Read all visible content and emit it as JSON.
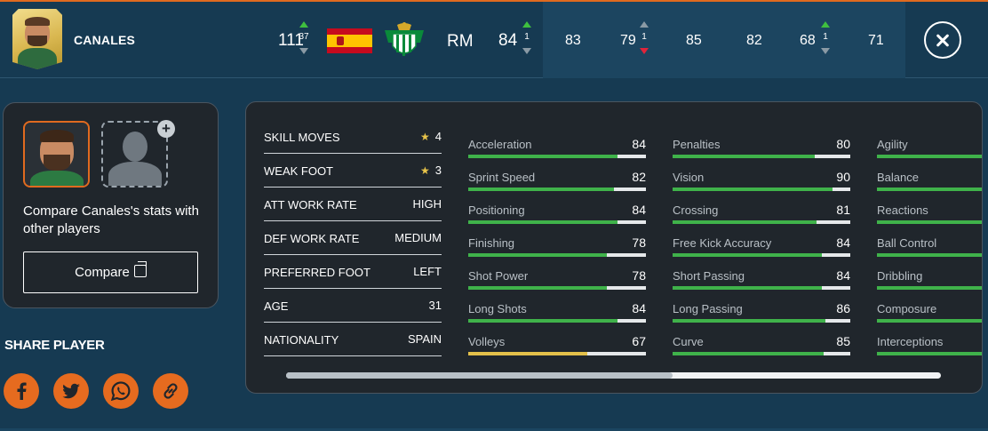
{
  "player": {
    "name": "CANALES",
    "position": "RM",
    "total_stats": "111",
    "total_change": "37",
    "rating": "84",
    "rating_change": "1"
  },
  "header_stats": [
    {
      "value": "83",
      "change": ""
    },
    {
      "value": "79",
      "change": "1"
    },
    {
      "value": "85",
      "change": ""
    },
    {
      "value": "82",
      "change": ""
    },
    {
      "value": "68",
      "change": "1"
    },
    {
      "value": "71",
      "change": ""
    }
  ],
  "compare": {
    "text": "Compare Canales's stats with other players",
    "button_label": "Compare"
  },
  "share": {
    "title": "SHARE PLAYER",
    "networks": [
      "facebook-icon",
      "twitter-icon",
      "whatsapp-icon",
      "link-icon"
    ]
  },
  "info": [
    {
      "label": "SKILL MOVES",
      "value": "4",
      "star": true
    },
    {
      "label": "WEAK FOOT",
      "value": "3",
      "star": true
    },
    {
      "label": "ATT WORK RATE",
      "value": "HIGH"
    },
    {
      "label": "DEF WORK RATE",
      "value": "MEDIUM"
    },
    {
      "label": "PREFERRED FOOT",
      "value": "LEFT"
    },
    {
      "label": "AGE",
      "value": "31"
    },
    {
      "label": "NATIONALITY",
      "value": "SPAIN"
    }
  ],
  "attributes": {
    "col1": [
      {
        "name": "Acceleration",
        "value": "84"
      },
      {
        "name": "Sprint Speed",
        "value": "82"
      },
      {
        "name": "Positioning",
        "value": "84"
      },
      {
        "name": "Finishing",
        "value": "78"
      },
      {
        "name": "Shot Power",
        "value": "78"
      },
      {
        "name": "Long Shots",
        "value": "84"
      },
      {
        "name": "Volleys",
        "value": "67"
      }
    ],
    "col2": [
      {
        "name": "Penalties",
        "value": "80"
      },
      {
        "name": "Vision",
        "value": "90"
      },
      {
        "name": "Crossing",
        "value": "81"
      },
      {
        "name": "Free Kick Accuracy",
        "value": "84"
      },
      {
        "name": "Short Passing",
        "value": "84"
      },
      {
        "name": "Long Passing",
        "value": "86"
      },
      {
        "name": "Curve",
        "value": "85"
      }
    ],
    "col3": [
      {
        "name": "Agility",
        "value": ""
      },
      {
        "name": "Balance",
        "value": ""
      },
      {
        "name": "Reactions",
        "value": ""
      },
      {
        "name": "Ball Control",
        "value": ""
      },
      {
        "name": "Dribbling",
        "value": ""
      },
      {
        "name": "Composure",
        "value": ""
      },
      {
        "name": "Interceptions",
        "value": ""
      }
    ]
  },
  "colors": {
    "accent": "#e66b1f",
    "bar_high": "#3fb24a",
    "bar_mid": "#e3c04a",
    "bar_track": "#e5e8ea",
    "up_arrow": "#3fbf3f",
    "down_arrow": "#e0243a",
    "background": "#163a52",
    "panel": "#20262c"
  }
}
